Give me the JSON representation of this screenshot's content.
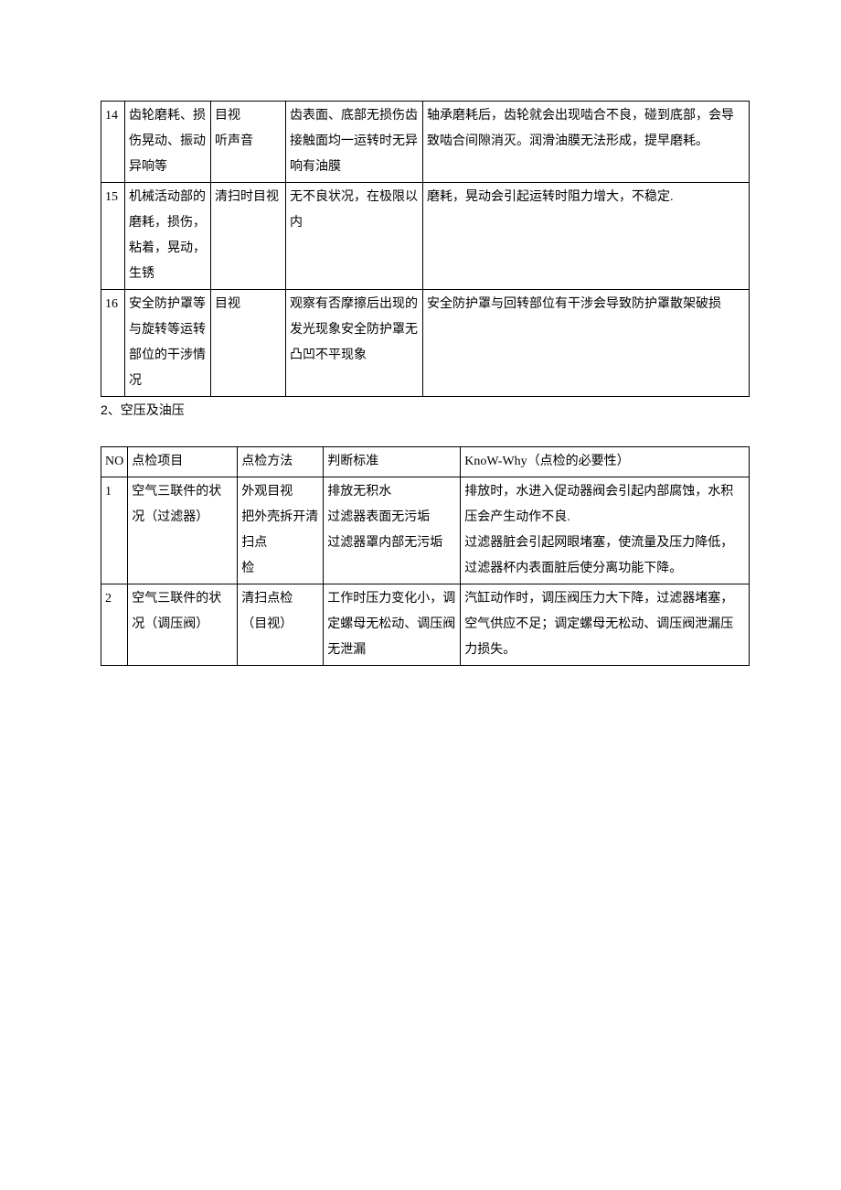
{
  "table1": {
    "rows": [
      {
        "no": "14",
        "item": "齿轮磨耗、损伤晃动、振动异响等",
        "method": "目视\n听声音",
        "criteria": "齿表面、底部无损伤齿接触面均一运转时无异响有油膜",
        "why": "轴承磨耗后，齿轮就会出现啮合不良，碰到底部，会导致啮合间隙消灭。润滑油膜无法形成，提早磨耗。"
      },
      {
        "no": "15",
        "item": "机械活动部的磨耗，损伤，粘着，晃动，生锈",
        "method": "清扫时目视",
        "criteria": "无不良状况，在极限以内",
        "why": "磨耗，晃动会引起运转时阻力增大，不稳定."
      },
      {
        "no": "16",
        "item": "安全防护罩等与旋转等运转部位的干涉情况",
        "method": "目视",
        "criteria": "观察有否摩擦后出现的发光现象安全防护罩无凸凹不平现象",
        "why": "安全防护罩与回转部位有干涉会导致防护罩散架破损"
      }
    ]
  },
  "section2_title": "2、空压及油压",
  "table2": {
    "header": {
      "no": "NO",
      "item": "点检项目",
      "method": "点检方法",
      "criteria": "判断标准",
      "why": "KnoW-Why（点检的必要性）"
    },
    "rows": [
      {
        "no": "1",
        "item": "空气三联件的状况（过滤器）",
        "method": "外观目视\n把外壳拆开清扫点\n检",
        "criteria": "排放无积水\n过滤器表面无污垢\n过滤器罩内部无污垢",
        "why": "排放时，水进入促动器阀会引起内部腐蚀，水积压会产生动作不良.\n过滤器脏会引起网眼堵塞，使流量及压力降低，过滤器杯内表面脏后使分离功能下降。"
      },
      {
        "no": "2",
        "item": "空气三联件的状况（调压阀）",
        "method": "清扫点检\n（目视）",
        "criteria": "工作时压力变化小，调定螺母无松动、调压阀无泄漏",
        "why": "汽缸动作时，调压阀压力大下降，过滤器堵塞，空气供应不足；调定螺母无松动、调压阀泄漏压力损失。"
      }
    ]
  }
}
